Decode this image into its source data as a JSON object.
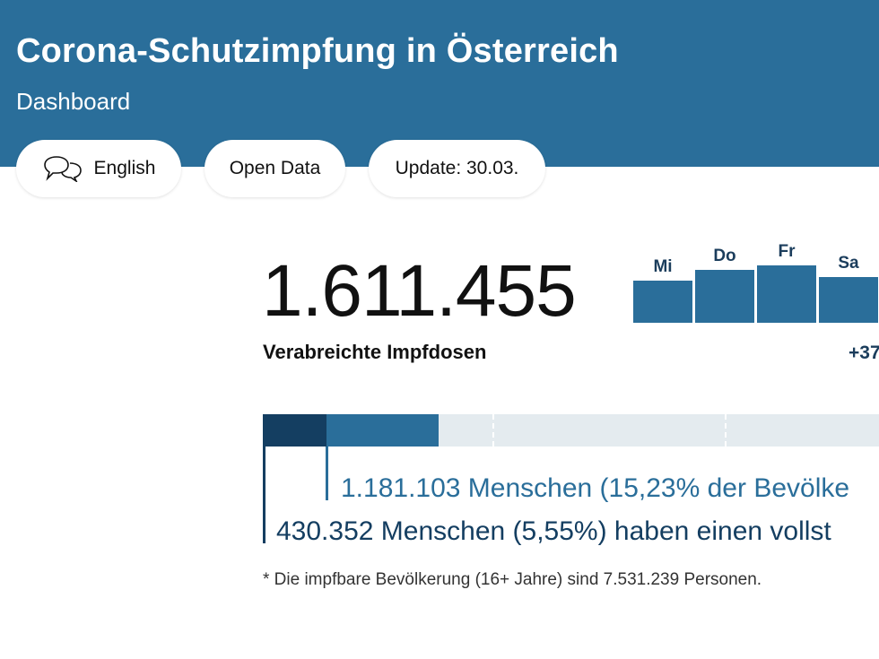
{
  "header": {
    "title": "Corona-Schutzimpfung in Österreich",
    "subtitle": "Dashboard"
  },
  "nav": {
    "english_label": "English",
    "open_data_label": "Open Data",
    "update_label": "Update: 30.03."
  },
  "icons": {
    "language": "speech-bubbles-icon"
  },
  "summary": {
    "total_doses": "1.611.455",
    "total_doses_label": "Verabreichte Impfdosen"
  },
  "daily_doses": {
    "days": [
      {
        "label": "Mi",
        "relative_height": 0.73
      },
      {
        "label": "Do",
        "relative_height": 0.92
      },
      {
        "label": "Fr",
        "relative_height": 1.0
      },
      {
        "label": "Sa",
        "relative_height": 0.79
      }
    ],
    "increase_text": "+37"
  },
  "progress": {
    "partial_fraction": 0.1523,
    "full_fraction": 0.0555,
    "partial_text": "1.181.103 Menschen (15,23% der Bevölke",
    "full_text": "430.352 Menschen (5,55%) haben einen vollst"
  },
  "footnote": "* Die impfbare Bevölkerung (16+ Jahre) sind 7.531.239 Personen.",
  "colors": {
    "header_bg": "#2a6e9a",
    "full_vaccinated": "#143e61",
    "partial_vaccinated": "#2a6e9a",
    "progress_track": "#e4ebef"
  }
}
